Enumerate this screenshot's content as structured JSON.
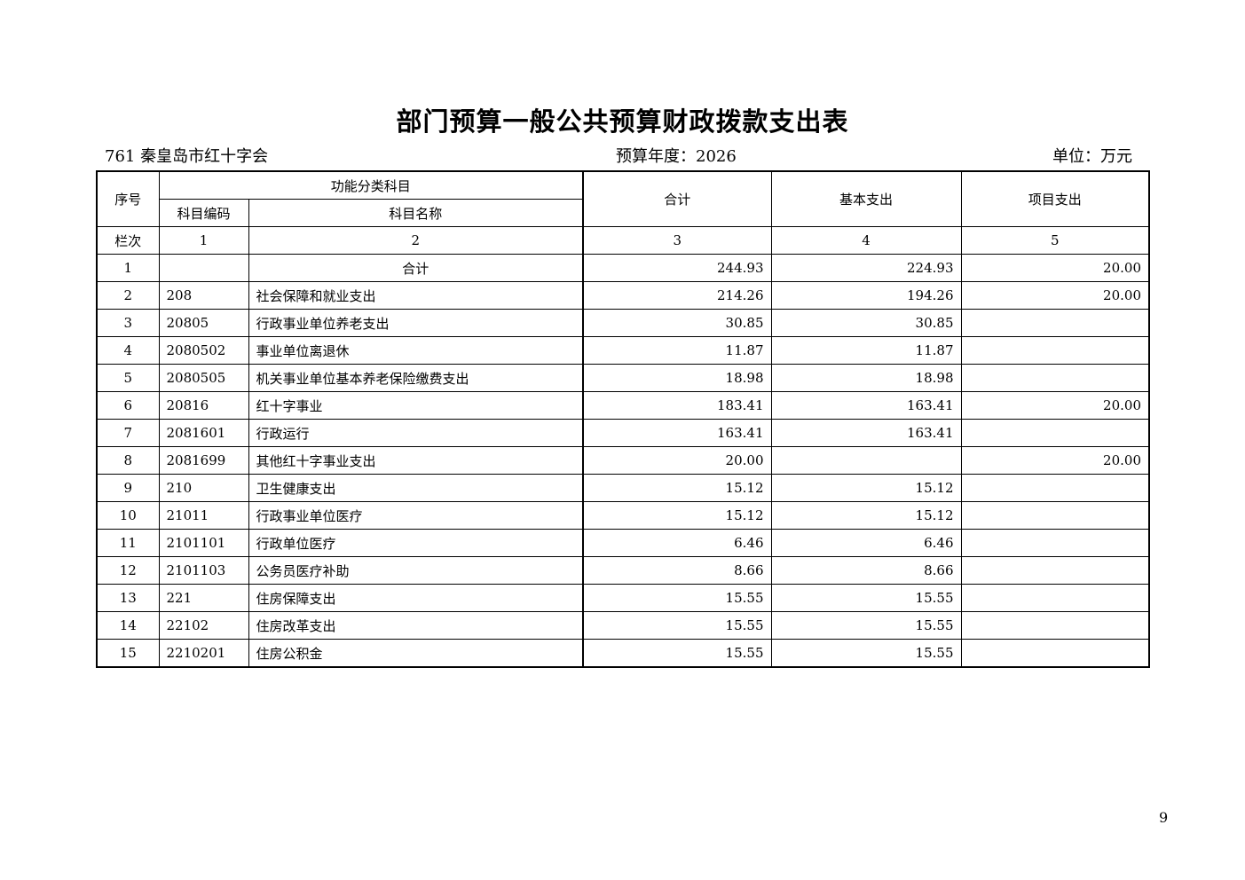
{
  "title": "部门预算一般公共预算财政拨款支出表",
  "unit_code_name": "761 秦皇岛市红十字会",
  "budget_year": "预算年度：2026",
  "unit_label": "单位：万元",
  "headers": {
    "seq": "序号",
    "func_class": "功能分类科目",
    "code": "科目编码",
    "name": "科目名称",
    "total": "合计",
    "basic": "基本支出",
    "project": "项目支出"
  },
  "column_index": {
    "label": "栏次",
    "c1": "1",
    "c2": "2",
    "c3": "3",
    "c4": "4",
    "c5": "5"
  },
  "rows": [
    {
      "seq": "1",
      "code": "",
      "name": "合计",
      "total": "244.93",
      "basic": "224.93",
      "project": "20.00"
    },
    {
      "seq": "2",
      "code": "208",
      "name": "社会保障和就业支出",
      "total": "214.26",
      "basic": "194.26",
      "project": "20.00"
    },
    {
      "seq": "3",
      "code": "20805",
      "name": "行政事业单位养老支出",
      "total": "30.85",
      "basic": "30.85",
      "project": ""
    },
    {
      "seq": "4",
      "code": "2080502",
      "name": "事业单位离退休",
      "total": "11.87",
      "basic": "11.87",
      "project": ""
    },
    {
      "seq": "5",
      "code": "2080505",
      "name": "机关事业单位基本养老保险缴费支出",
      "total": "18.98",
      "basic": "18.98",
      "project": ""
    },
    {
      "seq": "6",
      "code": "20816",
      "name": "红十字事业",
      "total": "183.41",
      "basic": "163.41",
      "project": "20.00"
    },
    {
      "seq": "7",
      "code": "2081601",
      "name": "行政运行",
      "total": "163.41",
      "basic": "163.41",
      "project": ""
    },
    {
      "seq": "8",
      "code": "2081699",
      "name": "其他红十字事业支出",
      "total": "20.00",
      "basic": "",
      "project": "20.00"
    },
    {
      "seq": "9",
      "code": "210",
      "name": "卫生健康支出",
      "total": "15.12",
      "basic": "15.12",
      "project": ""
    },
    {
      "seq": "10",
      "code": "21011",
      "name": "行政事业单位医疗",
      "total": "15.12",
      "basic": "15.12",
      "project": ""
    },
    {
      "seq": "11",
      "code": "2101101",
      "name": "行政单位医疗",
      "total": "6.46",
      "basic": "6.46",
      "project": ""
    },
    {
      "seq": "12",
      "code": "2101103",
      "name": "公务员医疗补助",
      "total": "8.66",
      "basic": "8.66",
      "project": ""
    },
    {
      "seq": "13",
      "code": "221",
      "name": "住房保障支出",
      "total": "15.55",
      "basic": "15.55",
      "project": ""
    },
    {
      "seq": "14",
      "code": "22102",
      "name": "住房改革支出",
      "total": "15.55",
      "basic": "15.55",
      "project": ""
    },
    {
      "seq": "15",
      "code": "2210201",
      "name": "住房公积金",
      "total": "15.55",
      "basic": "15.55",
      "project": ""
    }
  ],
  "page_number": "9"
}
